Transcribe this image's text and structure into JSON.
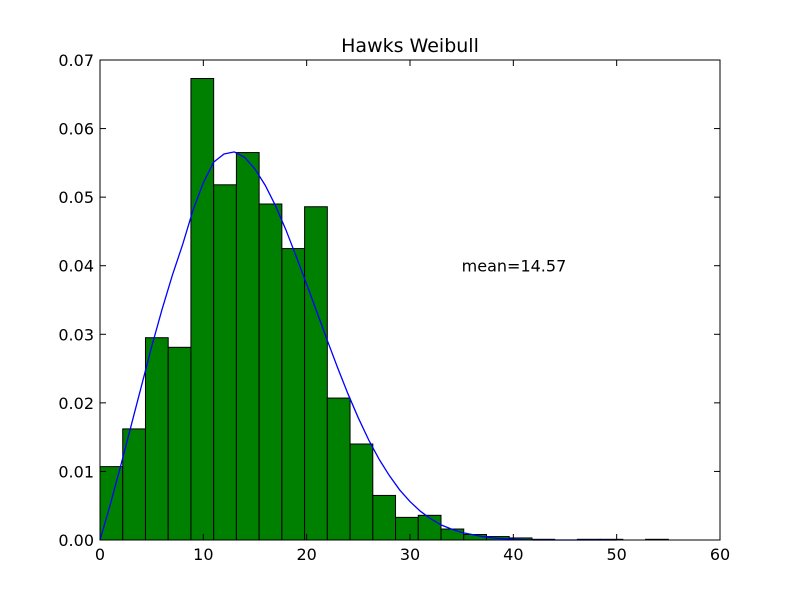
{
  "chart_data": {
    "type": "bar",
    "title": "Hawks Weibull",
    "xlabel": "",
    "ylabel": "",
    "xlim": [
      0,
      60
    ],
    "ylim": [
      0,
      0.07
    ],
    "x_ticks": [
      0,
      10,
      20,
      30,
      40,
      50,
      60
    ],
    "x_tick_labels": [
      "0",
      "10",
      "20",
      "30",
      "40",
      "50",
      "60"
    ],
    "y_ticks": [
      0,
      0.01,
      0.02,
      0.03,
      0.04,
      0.05,
      0.06,
      0.07
    ],
    "y_tick_labels": [
      "0.00",
      "0.01",
      "0.02",
      "0.03",
      "0.04",
      "0.05",
      "0.06",
      "0.07"
    ],
    "grid": false,
    "bar_color": "#008000",
    "curve_color": "#0000ff",
    "bins": {
      "start": 0,
      "width": 2.2,
      "densities": [
        0.0107,
        0.0162,
        0.0295,
        0.0281,
        0.0673,
        0.0518,
        0.0565,
        0.049,
        0.0425,
        0.0486,
        0.0207,
        0.014,
        0.0065,
        0.0033,
        0.0036,
        0.0016,
        0.0008,
        0.0005,
        0.0003,
        0.0001,
        0.0,
        0.0001,
        0.0001,
        0.0,
        0.0001
      ]
    },
    "curve": {
      "name": "",
      "x": [
        0,
        1,
        2,
        3,
        4,
        5,
        6,
        7,
        8,
        9,
        10,
        11,
        12,
        13,
        14,
        15,
        16,
        17,
        18,
        19,
        20,
        21,
        22,
        23,
        24,
        25,
        26,
        27,
        28,
        29,
        30,
        31,
        32,
        33,
        34,
        35,
        36,
        37,
        38,
        39,
        40,
        42,
        44,
        46,
        48,
        50
      ],
      "y": [
        0.0,
        0.0052,
        0.0108,
        0.0166,
        0.0224,
        0.0282,
        0.0336,
        0.0386,
        0.0431,
        0.0481,
        0.0521,
        0.0551,
        0.0563,
        0.0566,
        0.0558,
        0.0541,
        0.0517,
        0.0487,
        0.0452,
        0.0413,
        0.0373,
        0.0332,
        0.0291,
        0.0251,
        0.0213,
        0.0178,
        0.0146,
        0.0118,
        0.0094,
        0.0073,
        0.0056,
        0.0042,
        0.0031,
        0.0022,
        0.0016,
        0.0011,
        0.0008,
        0.0005,
        0.0003,
        0.0002,
        0.0001,
        0.0,
        0.0,
        0.0,
        0.0,
        0.0
      ]
    },
    "annotation": {
      "text": "mean=14.57",
      "x": 35,
      "y": 0.04
    }
  }
}
